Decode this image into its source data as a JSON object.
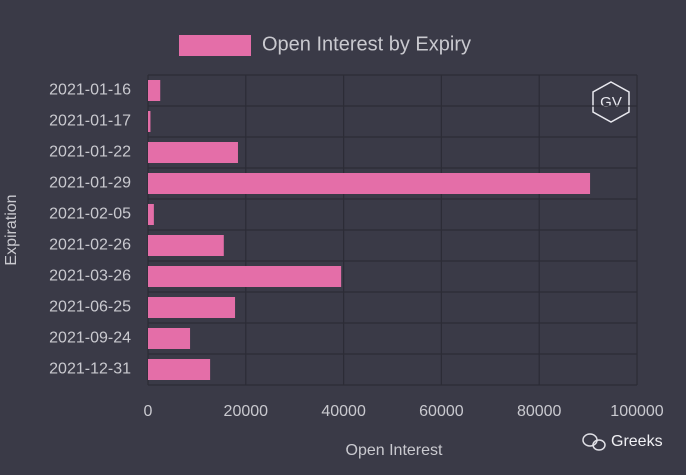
{
  "chart_data": {
    "type": "barh",
    "x_label": "Open Interest",
    "y_label": "Expiration",
    "categories": [
      "2021-01-16",
      "2021-01-17",
      "2021-01-22",
      "2021-01-29",
      "2021-02-05",
      "2021-02-26",
      "2021-03-26",
      "2021-06-25",
      "2021-09-24",
      "2021-12-31"
    ],
    "series": [
      {
        "name": "Open Interest by Expiry",
        "color": "#e46ea8",
        "values": [
          2500,
          500,
          18400,
          90400,
          1200,
          15500,
          39500,
          17800,
          8600,
          12700
        ]
      }
    ],
    "xlim": [
      0,
      100000
    ],
    "xticks": [
      0,
      20000,
      40000,
      60000,
      80000,
      100000
    ],
    "grid": true
  },
  "logo": "GV",
  "watermark": "Greeks"
}
